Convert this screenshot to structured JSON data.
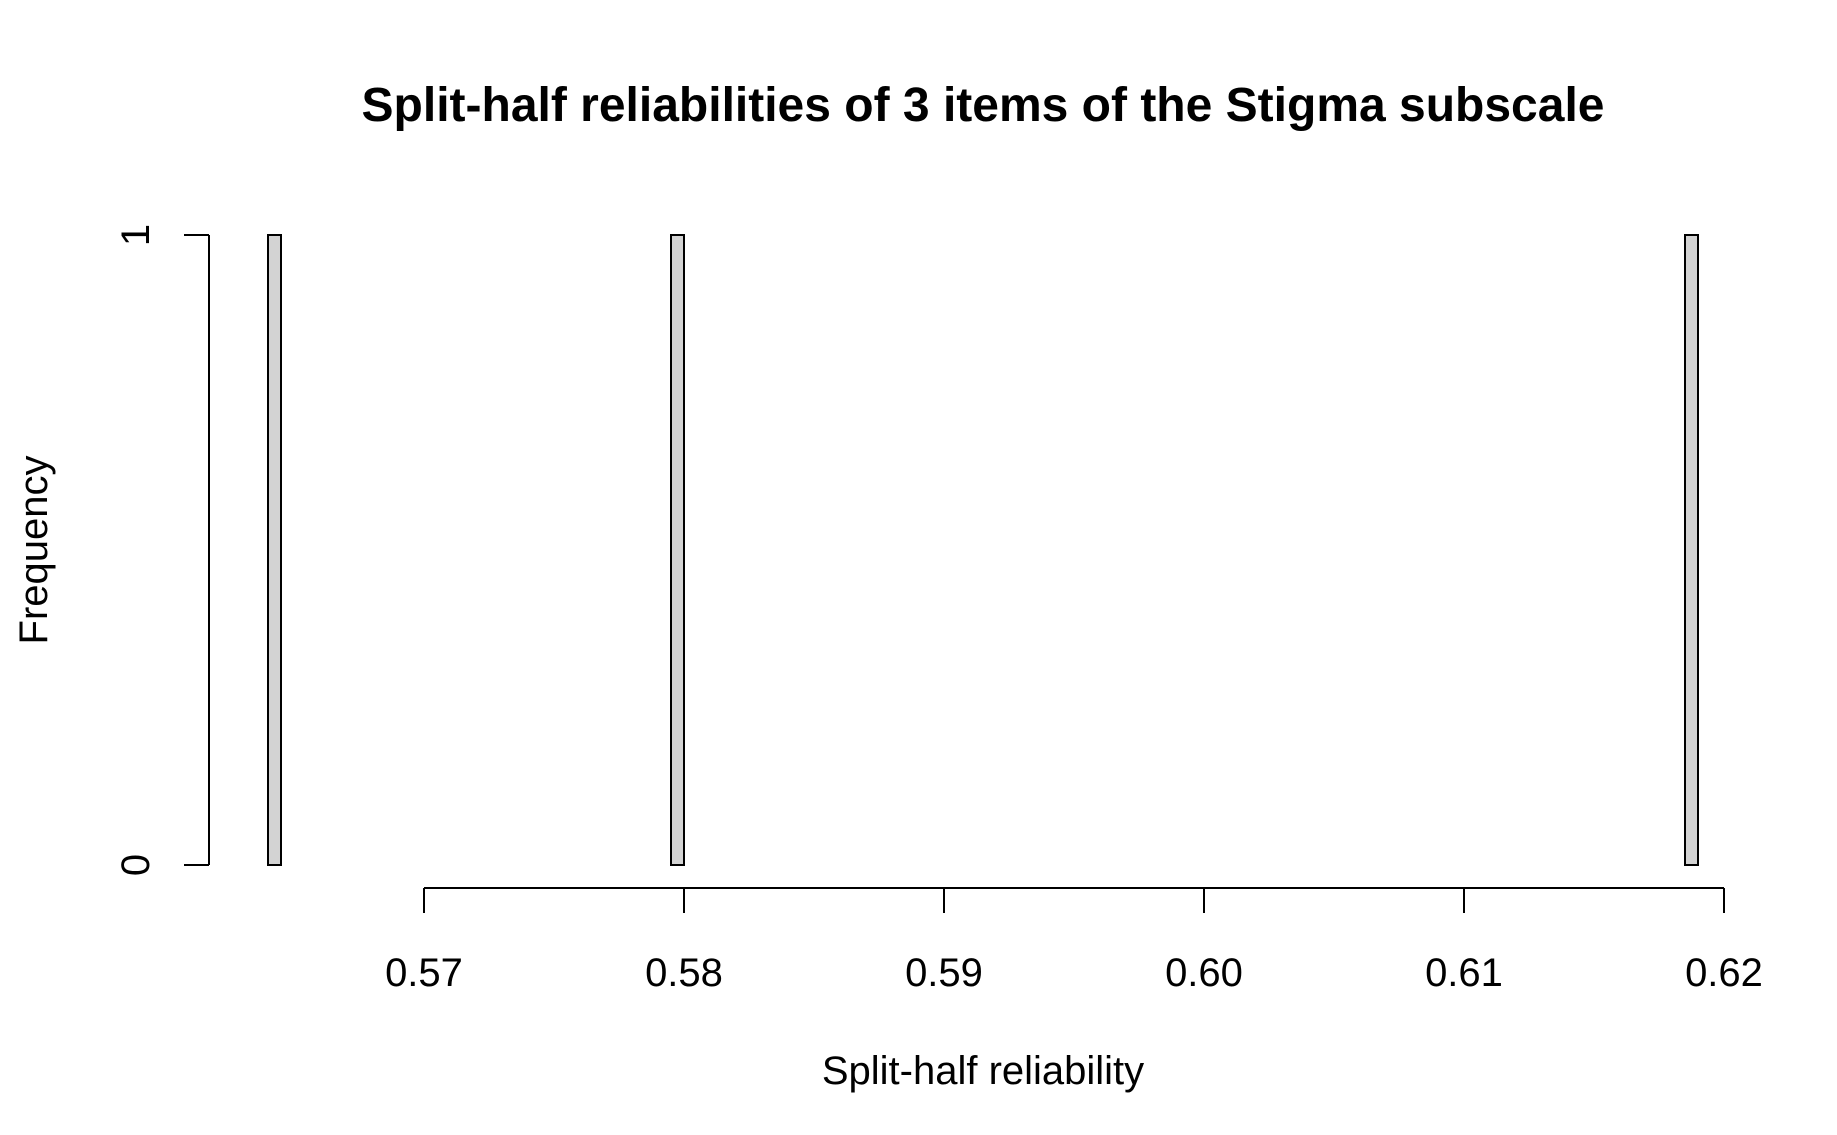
{
  "chart_data": {
    "type": "bar",
    "title": "Split-half reliabilities of 3 items of the Stigma subscale",
    "xlabel": "Split-half reliability",
    "ylabel": "Frequency",
    "bin_width": 0.0005,
    "bins": [
      {
        "start": 0.564,
        "end": 0.5645,
        "count": 1
      },
      {
        "start": 0.5795,
        "end": 0.58,
        "count": 1
      },
      {
        "start": 0.6185,
        "end": 0.619,
        "count": 1
      }
    ],
    "x_ticks": [
      0.57,
      0.58,
      0.59,
      0.6,
      0.61,
      0.62
    ],
    "x_tick_labels": [
      "0.57",
      "0.58",
      "0.59",
      "0.60",
      "0.61",
      "0.62"
    ],
    "y_ticks": [
      0,
      1
    ],
    "y_tick_labels": [
      "0",
      "1"
    ],
    "xlim": [
      0.564,
      0.619
    ],
    "ylim": [
      0,
      1
    ],
    "grid": false,
    "bar_fill": "#d3d3d3",
    "bar_stroke": "#000000"
  }
}
